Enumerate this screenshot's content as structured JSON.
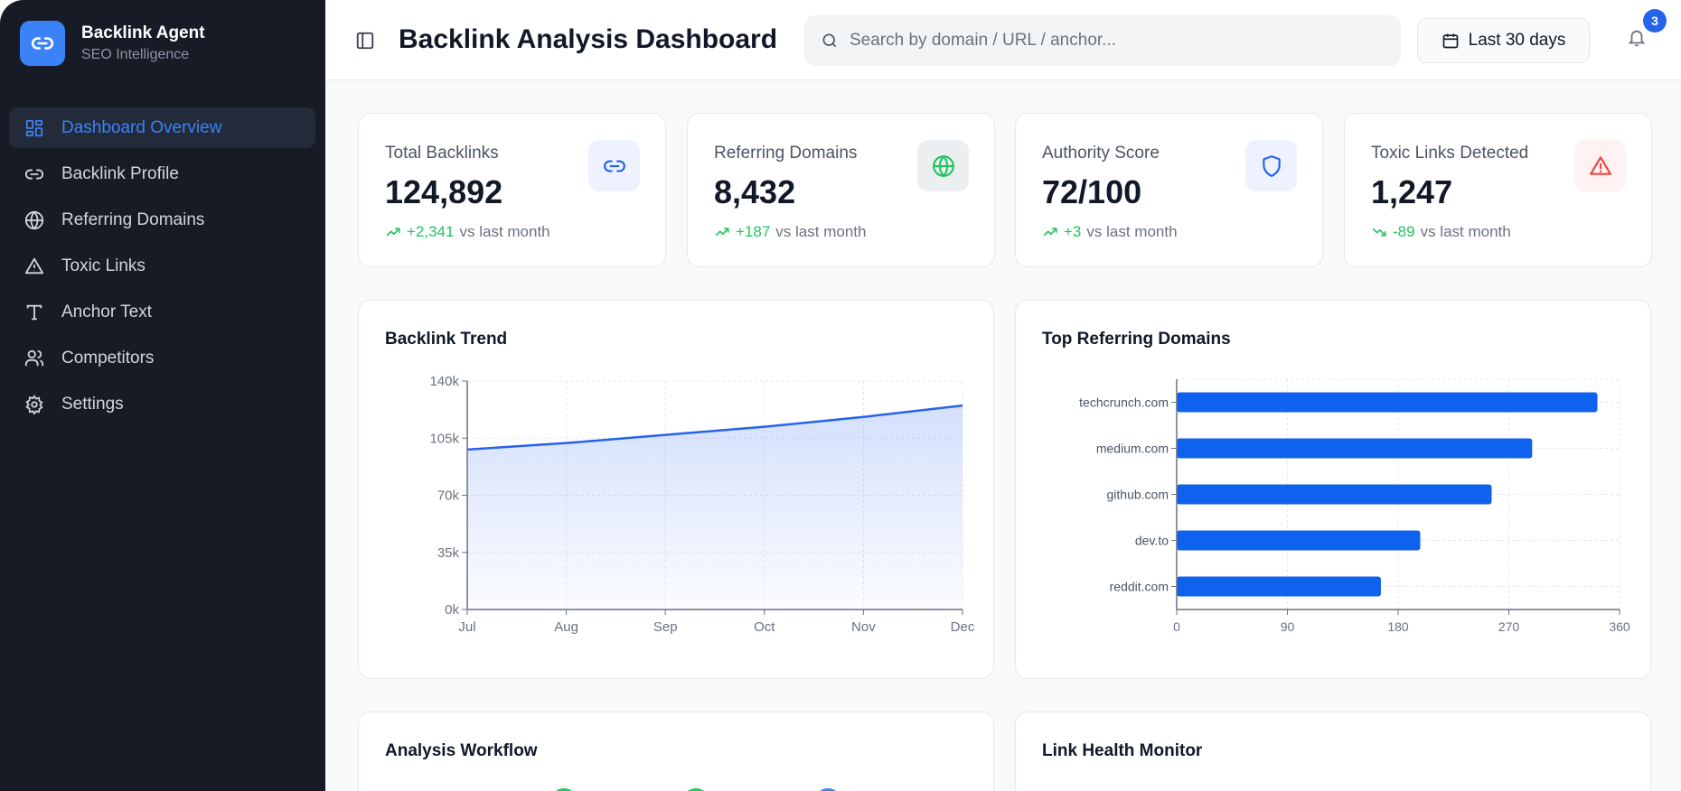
{
  "sidebar": {
    "brand": "Backlink Agent",
    "subtitle": "SEO Intelligence",
    "items": [
      {
        "label": "Dashboard Overview",
        "icon": "dashboard-icon",
        "active": true
      },
      {
        "label": "Backlink Profile",
        "icon": "link-icon"
      },
      {
        "label": "Referring Domains",
        "icon": "globe-icon"
      },
      {
        "label": "Toxic Links",
        "icon": "warning-icon"
      },
      {
        "label": "Anchor Text",
        "icon": "text-icon"
      },
      {
        "label": "Competitors",
        "icon": "users-icon"
      },
      {
        "label": "Settings",
        "icon": "gear-icon"
      }
    ]
  },
  "header": {
    "title": "Backlink Analysis Dashboard",
    "search_placeholder": "Search by domain / URL / anchor...",
    "date_range": "Last 30 days",
    "notifications": "3"
  },
  "stats": [
    {
      "label": "Total Backlinks",
      "value": "124,892",
      "delta": "+2,341",
      "suffix": "vs last month",
      "icon": "link-icon",
      "bg": "#eef2ff",
      "color": "#2563eb",
      "trend": "up"
    },
    {
      "label": "Referring Domains",
      "value": "8,432",
      "delta": "+187",
      "suffix": "vs last month",
      "icon": "globe-icon",
      "bg": "#eceff1",
      "color": "#22c55e",
      "trend": "up"
    },
    {
      "label": "Authority Score",
      "value": "72/100",
      "delta": "+3",
      "suffix": "vs last month",
      "icon": "shield-icon",
      "bg": "#eef2ff",
      "color": "#2563eb",
      "trend": "up"
    },
    {
      "label": "Toxic Links Detected",
      "value": "1,247",
      "delta": "-89",
      "suffix": "vs last month",
      "icon": "alert-icon",
      "bg": "#fef2f2",
      "color": "#ef4444",
      "trend": "down"
    }
  ],
  "chart_data": [
    {
      "type": "area",
      "title": "Backlink Trend",
      "categories": [
        "Jul",
        "Aug",
        "Sep",
        "Oct",
        "Nov",
        "Dec"
      ],
      "values": [
        98000,
        102000,
        107000,
        112000,
        118000,
        125000
      ],
      "ylim": [
        0,
        140000
      ],
      "yticks": [
        "0k",
        "35k",
        "70k",
        "105k",
        "140k"
      ],
      "grid": true,
      "color": "#2563eb"
    },
    {
      "type": "bar",
      "orientation": "horizontal",
      "title": "Top Referring Domains",
      "categories": [
        "techcrunch.com",
        "medium.com",
        "github.com",
        "dev.to",
        "reddit.com"
      ],
      "values": [
        342,
        289,
        256,
        198,
        166
      ],
      "xlim": [
        0,
        360
      ],
      "xticks": [
        "0",
        "90",
        "180",
        "270",
        "360"
      ],
      "grid": true,
      "color": "#0f62ed"
    }
  ],
  "bottom": {
    "workflow_title": "Analysis Workflow",
    "health_title": "Link Health Monitor"
  }
}
